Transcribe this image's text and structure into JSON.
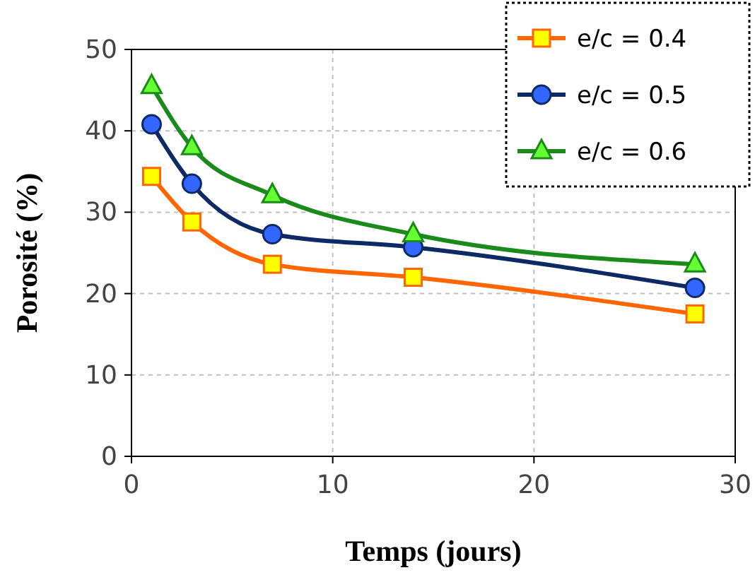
{
  "chart_data": {
    "type": "line",
    "xlabel": "Temps (jours)",
    "ylabel": "Porosité (%)",
    "x": [
      1,
      3,
      7,
      14,
      28
    ],
    "series": [
      {
        "name": "e/c = 0.4",
        "color": "#ff6600",
        "marker": "square",
        "values": [
          34.4,
          28.8,
          23.6,
          22.0,
          17.5
        ]
      },
      {
        "name": "e/c = 0.5",
        "color": "#0d2a66",
        "marker": "circle",
        "values": [
          40.8,
          33.5,
          27.3,
          25.7,
          20.7
        ]
      },
      {
        "name": "e/c = 0.6",
        "color": "#1a8a1a",
        "marker": "triangle",
        "values": [
          45.5,
          38.0,
          32.1,
          27.3,
          23.6
        ]
      }
    ],
    "xlim": [
      0,
      30
    ],
    "xticks": [
      0,
      10,
      20,
      30
    ],
    "ylim": [
      0,
      50
    ],
    "yticks": [
      0,
      10,
      20,
      30,
      40,
      50
    ],
    "grid": true,
    "legend": "top right",
    "line_style": "solid"
  }
}
